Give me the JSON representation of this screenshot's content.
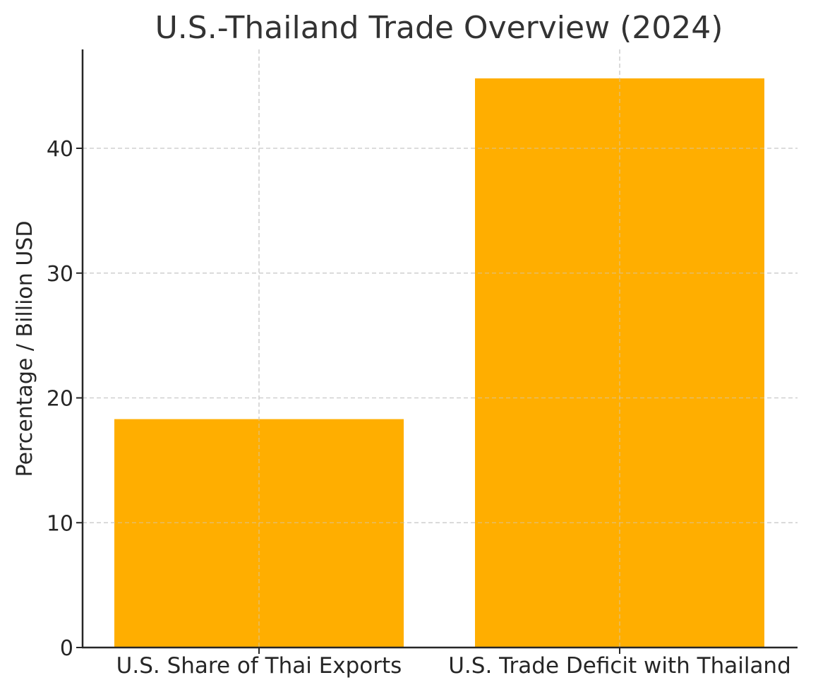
{
  "chart_data": {
    "type": "bar",
    "title": "U.S.-Thailand Trade Overview (2024)",
    "xlabel": "",
    "ylabel": "Percentage / Billion USD",
    "categories": [
      "U.S. Share of Thai Exports",
      "U.S. Trade Deficit with Thailand"
    ],
    "values": [
      18.3,
      45.6
    ],
    "ylim": [
      0,
      48
    ],
    "yticks": [
      0,
      10,
      20,
      30,
      40
    ],
    "grid": true,
    "legend": null,
    "bar_color": "#FFAE00"
  }
}
